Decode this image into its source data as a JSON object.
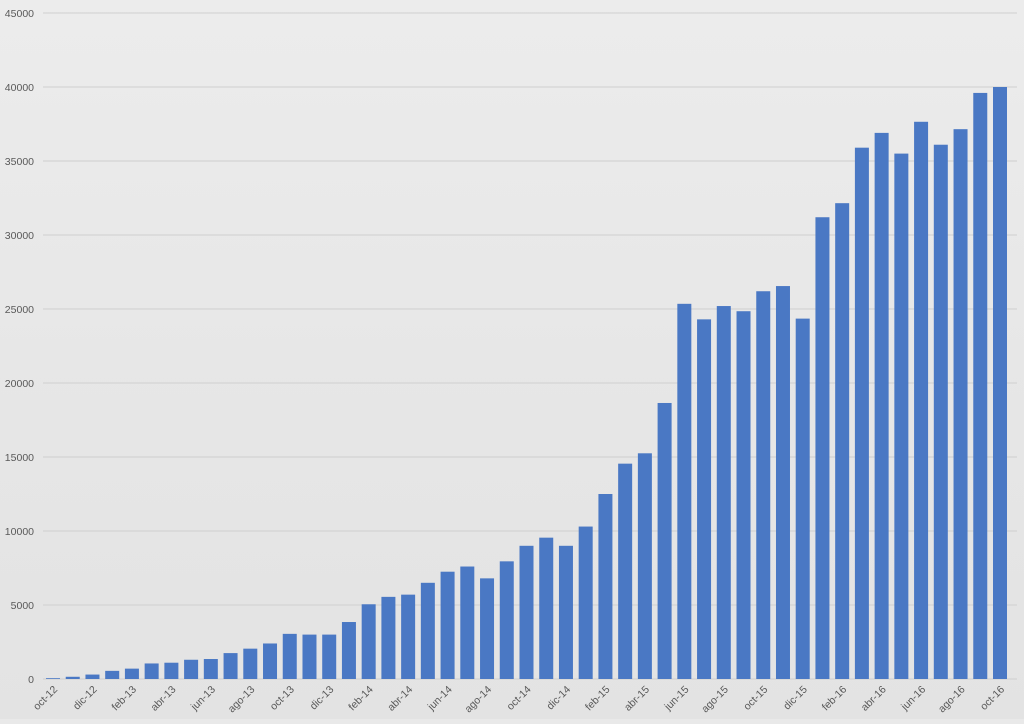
{
  "chart_data": {
    "type": "bar",
    "title": "",
    "xlabel": "",
    "ylabel": "",
    "ylim": [
      0,
      45000
    ],
    "yticks": [
      0,
      5000,
      10000,
      15000,
      20000,
      25000,
      30000,
      35000,
      40000,
      45000
    ],
    "grid": true,
    "legend": "none",
    "bar_color": "#4a78c4",
    "grid_color": "#cfcfcf",
    "tick_label_color": "#595959",
    "categories": [
      "oct-12",
      "nov-12",
      "dic-12",
      "ene-13",
      "feb-13",
      "mar-13",
      "abr-13",
      "may-13",
      "jun-13",
      "jul-13",
      "ago-13",
      "sep-13",
      "oct-13",
      "nov-13",
      "dic-13",
      "ene-14",
      "feb-14",
      "mar-14",
      "abr-14",
      "may-14",
      "jun-14",
      "jul-14",
      "ago-14",
      "sep-14",
      "oct-14",
      "nov-14",
      "dic-14",
      "ene-15",
      "feb-15",
      "mar-15",
      "abr-15",
      "may-15",
      "jun-15",
      "jul-15",
      "ago-15",
      "sep-15",
      "oct-15",
      "nov-15",
      "dic-15",
      "ene-16",
      "feb-16",
      "mar-16",
      "abr-16",
      "may-16",
      "jun-16",
      "jul-16",
      "ago-16",
      "sep-16",
      "oct-16"
    ],
    "visible_tick_labels": [
      "oct-12",
      "",
      "dic-12",
      "",
      "feb-13",
      "",
      "abr-13",
      "",
      "jun-13",
      "",
      "ago-13",
      "",
      "oct-13",
      "",
      "dic-13",
      "",
      "feb-14",
      "",
      "abr-14",
      "",
      "jun-14",
      "",
      "ago-14",
      "",
      "oct-14",
      "",
      "dic-14",
      "",
      "feb-15",
      "",
      "abr-15",
      "",
      "jun-15",
      "",
      "ago-15",
      "",
      "oct-15",
      "",
      "dic-15",
      "",
      "feb-16",
      "",
      "abr-16",
      "",
      "jun-16",
      "",
      "ago-16",
      "",
      "oct-16"
    ],
    "values": [
      50,
      150,
      300,
      550,
      700,
      1050,
      1100,
      1300,
      1350,
      1750,
      2050,
      2400,
      3050,
      3000,
      3000,
      3850,
      5050,
      5550,
      5700,
      6500,
      7250,
      7600,
      6800,
      7950,
      9000,
      9550,
      9000,
      10300,
      12500,
      14550,
      15250,
      18650,
      25350,
      24300,
      25200,
      24850,
      26200,
      26550,
      24350,
      31200,
      32150,
      35900,
      36900,
      35500,
      37650,
      36100,
      37150,
      39600,
      40000
    ]
  }
}
